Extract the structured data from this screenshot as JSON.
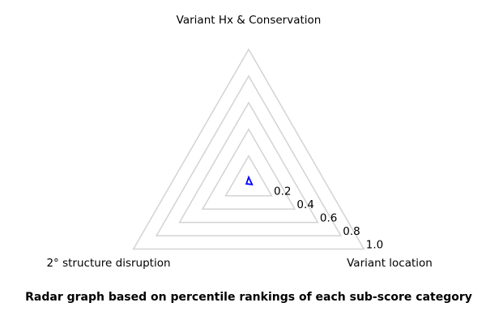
{
  "caption": "Radar graph based on percentile rankings of each sub-score category",
  "chart_data": {
    "type": "radar",
    "shape": "triangle",
    "axes": [
      {
        "label": "Variant Hx & Conservation",
        "angle_deg": 0
      },
      {
        "label": "Variant location",
        "angle_deg": 120
      },
      {
        "label": "2° structure disruption",
        "angle_deg": 240
      }
    ],
    "ticks": [
      0.2,
      0.4,
      0.6,
      0.8,
      1.0
    ],
    "tick_labels": [
      "0.2",
      "0.4",
      "0.6",
      "0.8",
      "1.0"
    ],
    "range": [
      0,
      1.0
    ],
    "series": [
      {
        "values": [
          0.04,
          0.03,
          0.02
        ],
        "color": "#0000ff"
      }
    ],
    "gridline_color": "#d3d3d3",
    "background_color": "#ffffff",
    "legend": "none",
    "grid": "on"
  }
}
